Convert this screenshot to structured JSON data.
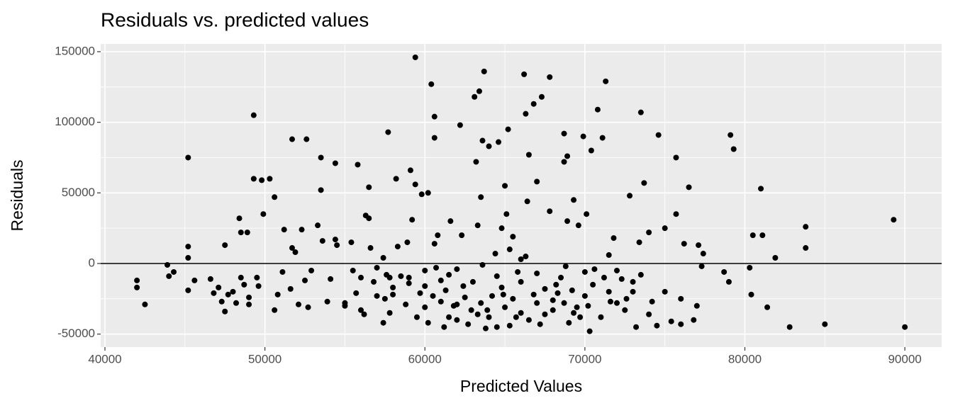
{
  "chart_data": {
    "type": "scatter",
    "title": "Residuals vs. predicted values",
    "x_label": "Predicted Values",
    "y_label": "Residuals",
    "color": "#000000",
    "hline": 0,
    "grid": true,
    "xlim": [
      39734,
      92300
    ],
    "ylim": [
      -59200,
      155500
    ],
    "xticks": [
      40000,
      50000,
      60000,
      70000,
      80000,
      90000
    ],
    "yticks": [
      -50000,
      0,
      50000,
      100000,
      150000
    ],
    "x": [
      42000,
      42000,
      42500,
      43900,
      44000,
      44300,
      45200,
      45200,
      45200,
      45200,
      45600,
      46600,
      46800,
      47100,
      47300,
      47500,
      47500,
      47700,
      48000,
      48200,
      48400,
      48500,
      48500,
      48700,
      48900,
      49000,
      49000,
      49300,
      49300,
      49500,
      49600,
      49800,
      49900,
      50300,
      50600,
      50600,
      50800,
      51100,
      51200,
      51600,
      51700,
      51700,
      51900,
      52100,
      52300,
      52500,
      52600,
      52700,
      52900,
      53300,
      53500,
      53500,
      53600,
      53900,
      54100,
      54400,
      54400,
      54500,
      55000,
      55400,
      55500,
      55700,
      55800,
      56000,
      56200,
      56300,
      56500,
      56500,
      56600,
      56800,
      57000,
      57400,
      57400,
      57500,
      57600,
      57700,
      57800,
      58000,
      58200,
      58300,
      58500,
      58800,
      58900,
      59000,
      59100,
      59200,
      59400,
      59400,
      59700,
      59800,
      60000,
      60200,
      60200,
      60400,
      60600,
      60600,
      60600,
      60700,
      61000,
      61300,
      61500,
      62000,
      62200,
      62400,
      62700,
      62900,
      63100,
      63200,
      63300,
      63400,
      63500,
      63600,
      63700,
      63800,
      63900,
      64000,
      64200,
      64400,
      64600,
      64900,
      65000,
      65100,
      65200,
      65300,
      65500,
      65800,
      66000,
      66200,
      66300,
      66500,
      66800,
      67000,
      67300,
      67500,
      67800,
      68000,
      68300,
      68700,
      68700,
      68900,
      69200,
      69600,
      69900,
      70000,
      70300,
      70400,
      70800,
      71100,
      71300,
      71500,
      71600,
      72000,
      72300,
      72800,
      73000,
      73200,
      73500,
      73700,
      74000,
      74200,
      74500,
      74600,
      75000,
      75400,
      75700,
      75700,
      76000,
      76200,
      76500,
      76800,
      77100,
      77300,
      77400,
      78700,
      79100,
      79300,
      79000,
      80300,
      80400,
      80500,
      81000,
      81100,
      81400,
      81900,
      82800,
      83800,
      83800,
      85000,
      89300,
      90000,
      55000,
      56000,
      57000,
      58000,
      59000,
      60000,
      60500,
      61000,
      61500,
      62000,
      62500,
      63000,
      63500,
      64000,
      64500,
      65000,
      65500,
      66000,
      66500,
      67000,
      67500,
      68000,
      68500,
      69000,
      69500,
      70000,
      70500,
      71000,
      71500,
      72000,
      72500,
      73000,
      73500,
      74000,
      75000,
      76000,
      77000,
      62000,
      64500,
      66000,
      67000,
      68700,
      69700,
      60000,
      61800,
      63300,
      64800,
      66800,
      68200,
      70200,
      57800,
      59500,
      61200,
      65700,
      67200,
      69300,
      71200,
      72600,
      63600,
      66300,
      68800,
      70600,
      65300,
      62300,
      64800,
      67800,
      69300,
      71800,
      73400,
      60800,
      61600,
      66400,
      68900,
      70100
    ],
    "values": [
      -12000,
      -17000,
      -29000,
      -1000,
      -9000,
      -6000,
      75000,
      12000,
      4000,
      -19000,
      -12000,
      -11000,
      -21000,
      -17000,
      -27000,
      13000,
      -34000,
      -22000,
      -20000,
      -28000,
      32000,
      -10000,
      22000,
      -15000,
      22000,
      -29000,
      -24000,
      105000,
      60000,
      -10000,
      -16000,
      59000,
      35000,
      60000,
      47000,
      -33000,
      -22000,
      -6000,
      24000,
      -18000,
      88000,
      11000,
      8000,
      -29000,
      24000,
      -12000,
      88000,
      -31000,
      -5000,
      27000,
      75000,
      52000,
      16000,
      -27000,
      -11000,
      71000,
      17000,
      13000,
      -30000,
      15000,
      -5000,
      -21000,
      70000,
      -33000,
      -36000,
      34000,
      32000,
      54000,
      11000,
      -13000,
      -23000,
      4000,
      -42000,
      -25000,
      -8000,
      93000,
      -35000,
      -17000,
      60000,
      12000,
      -9000,
      -29000,
      15000,
      -10000,
      66000,
      31000,
      146000,
      56000,
      -21000,
      49000,
      -31000,
      50000,
      -42000,
      127000,
      104000,
      89000,
      14000,
      -3000,
      -27000,
      -19000,
      -38000,
      -29000,
      98000,
      -16000,
      -43000,
      -33000,
      118000,
      72000,
      27000,
      122000,
      47000,
      87000,
      136000,
      -46000,
      -33000,
      83000,
      -23000,
      7000,
      86000,
      -22000,
      55000,
      35000,
      95000,
      -44000,
      19000,
      -6000,
      3000,
      134000,
      106000,
      77000,
      113000,
      58000,
      118000,
      -36000,
      132000,
      -26000,
      -21000,
      92000,
      72000,
      76000,
      -19000,
      27000,
      90000,
      -23000,
      -48000,
      80000,
      109000,
      89000,
      129000,
      6000,
      -27000,
      -28000,
      -11000,
      48000,
      -13000,
      -45000,
      107000,
      57000,
      22000,
      -27000,
      -44000,
      91000,
      25000,
      -41000,
      75000,
      35000,
      -43000,
      14000,
      54000,
      -40000,
      13000,
      -2000,
      7000,
      -6000,
      91000,
      81000,
      -13000,
      -3000,
      -22000,
      20000,
      53000,
      20000,
      -31000,
      4000,
      -45000,
      26000,
      11000,
      -43000,
      31000,
      -45000,
      -28000,
      -10000,
      -3000,
      -22000,
      -14000,
      -5000,
      -23000,
      -12000,
      -8000,
      -4000,
      -24000,
      -13000,
      -28000,
      -38000,
      -9000,
      -31000,
      -25000,
      -13000,
      -40000,
      -7000,
      -18000,
      -33000,
      -10000,
      -42000,
      -31000,
      -6000,
      -15000,
      -38000,
      -20000,
      -5000,
      -33000,
      -20000,
      -8000,
      -36000,
      -20000,
      -25000,
      -30000,
      -40000,
      -45000,
      -35000,
      -28000,
      -28000,
      -38000,
      -16000,
      -30000,
      -36000,
      -17000,
      -22000,
      -15000,
      -30000,
      -10000,
      -38000,
      -45000,
      -38000,
      -43000,
      -35000,
      -10000,
      -25000,
      -1000,
      5000,
      -2000,
      -4000,
      10000,
      20000,
      25000,
      37000,
      45000,
      18000,
      15000,
      20000,
      30000,
      44000,
      30000,
      35000
    ]
  }
}
